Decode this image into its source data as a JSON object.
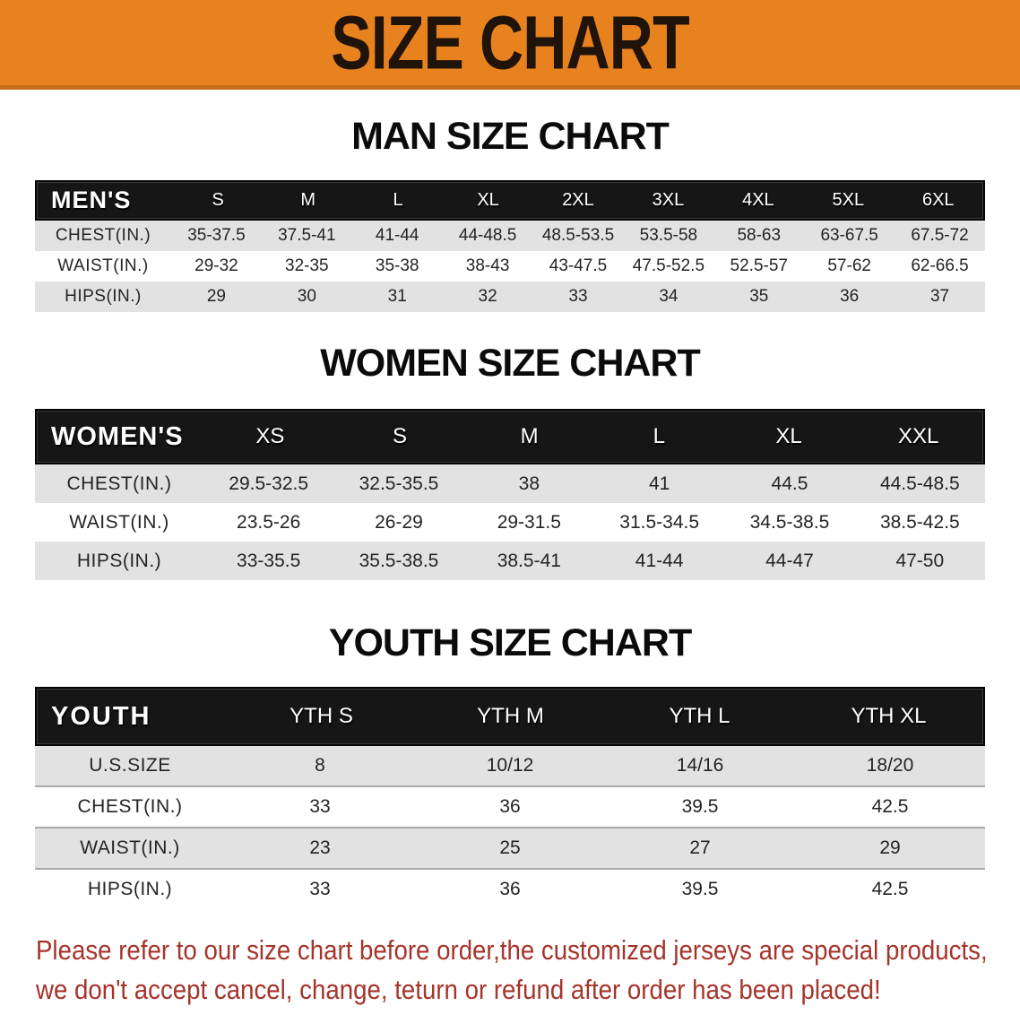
{
  "banner": {
    "title": "SIZE CHART"
  },
  "colors": {
    "banner_bg": "#e8821e",
    "banner_border": "#c66e1a",
    "table_header_bg": "#161616",
    "table_header_text": "#ffffff",
    "row_gray": "#e2e2e2",
    "note_red": "#a5342a"
  },
  "man": {
    "section_title": "MAN SIZE CHART",
    "label": "MEN'S",
    "columns": [
      "S",
      "M",
      "L",
      "XL",
      "2XL",
      "3XL",
      "4XL",
      "5XL",
      "6XL"
    ],
    "rows": [
      {
        "label": "CHEST(IN.)",
        "values": [
          "35-37.5",
          "37.5-41",
          "41-44",
          "44-48.5",
          "48.5-53.5",
          "53.5-58",
          "58-63",
          "63-67.5",
          "67.5-72"
        ]
      },
      {
        "label": "WAIST(IN.)",
        "values": [
          "29-32",
          "32-35",
          "35-38",
          "38-43",
          "43-47.5",
          "47.5-52.5",
          "52.5-57",
          "57-62",
          "62-66.5"
        ]
      },
      {
        "label": "HIPS(IN.)",
        "values": [
          "29",
          "30",
          "31",
          "32",
          "33",
          "34",
          "35",
          "36",
          "37"
        ]
      }
    ]
  },
  "women": {
    "section_title": "WOMEN SIZE CHART",
    "label": "WOMEN'S",
    "columns": [
      "XS",
      "S",
      "M",
      "L",
      "XL",
      "XXL"
    ],
    "rows": [
      {
        "label": "CHEST(IN.)",
        "values": [
          "29.5-32.5",
          "32.5-35.5",
          "38",
          "41",
          "44.5",
          "44.5-48.5"
        ]
      },
      {
        "label": "WAIST(IN.)",
        "values": [
          "23.5-26",
          "26-29",
          "29-31.5",
          "31.5-34.5",
          "34.5-38.5",
          "38.5-42.5"
        ]
      },
      {
        "label": "HIPS(IN.)",
        "values": [
          "33-35.5",
          "35.5-38.5",
          "38.5-41",
          "41-44",
          "44-47",
          "47-50"
        ]
      }
    ]
  },
  "youth": {
    "section_title": "YOUTH SIZE CHART",
    "label": "YOUTH",
    "columns": [
      "YTH S",
      "YTH M",
      "YTH L",
      "YTH XL"
    ],
    "rows": [
      {
        "label": "U.S.SIZE",
        "values": [
          "8",
          "10/12",
          "14/16",
          "18/20"
        ]
      },
      {
        "label": "CHEST(IN.)",
        "values": [
          "33",
          "36",
          "39.5",
          "42.5"
        ]
      },
      {
        "label": "WAIST(IN.)",
        "values": [
          "23",
          "25",
          "27",
          "29"
        ]
      },
      {
        "label": "HIPS(IN.)",
        "values": [
          "33",
          "36",
          "39.5",
          "42.5"
        ]
      }
    ]
  },
  "note": {
    "line1": "Please refer to our size chart before order,the customized jerseys are special products,",
    "line2": "we don't accept cancel, change, teturn or refund after order has been placed!"
  }
}
